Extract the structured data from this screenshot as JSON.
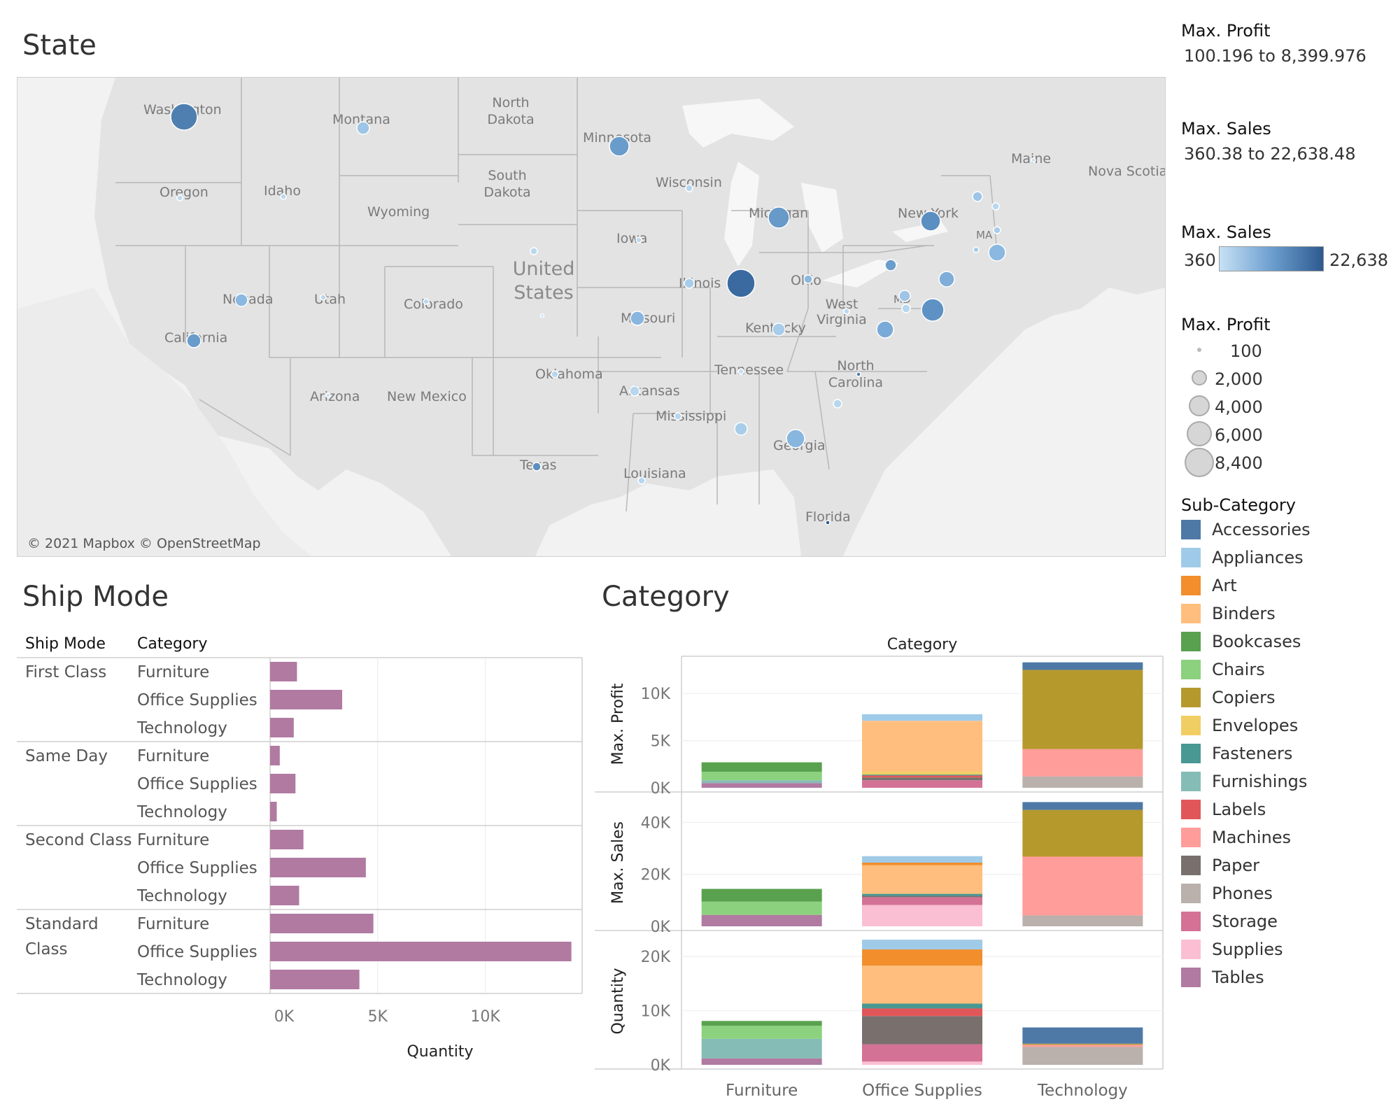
{
  "state_title": "State",
  "ship_mode_title": "Ship Mode",
  "category_title": "Category",
  "map": {
    "attribution": "© 2021 Mapbox © OpenStreetMap",
    "labels": {
      "washington": "Washington",
      "montana": "Montana",
      "north_dakota": "North\nDakota",
      "minnesota": "Minnesota",
      "south_dakota": "South\nDakota",
      "oregon": "Oregon",
      "idaho": "Idaho",
      "wyoming": "Wyoming",
      "wisconsin": "Wisconsin",
      "michigan": "Michigan",
      "new_york": "New York",
      "maine": "Maine",
      "nova_scotia": "Nova Scotia",
      "iowa": "Iowa",
      "united_states": "United\nStates",
      "nevada": "Nevada",
      "utah": "Utah",
      "colorado": "Colorado",
      "illinois": "Illinois",
      "ohio": "Ohio",
      "west_virginia": "West\nVirginia",
      "missouri": "Missouri",
      "kentucky": "Kentucky",
      "california": "California",
      "tennessee": "Tennessee",
      "north_carolina": "North\nCarolina",
      "oklahoma": "Oklahoma",
      "arizona": "Arizona",
      "new_mexico": "New Mexico",
      "arkansas": "Arkansas",
      "mississippi": "Mississippi",
      "georgia": "Georgia",
      "texas": "Texas",
      "louisiana": "Louisiana",
      "florida": "Florida",
      "md": "MD",
      "ma": "MA"
    }
  },
  "legends": {
    "max_profit_range_title": "Max. Profit",
    "max_profit_range": "100.196 to 8,399.976",
    "max_sales_range_title": "Max. Sales",
    "max_sales_range": "360.38 to 22,638.48",
    "max_sales_color_title": "Max. Sales",
    "max_sales_min": "360",
    "max_sales_max": "22,638",
    "max_profit_size_title": "Max. Profit",
    "size_values": [
      "100",
      "2,000",
      "4,000",
      "6,000",
      "8,400"
    ],
    "subcategory_title": "Sub-Category",
    "subcategories": [
      {
        "name": "Accessories",
        "color": "#4e79a7"
      },
      {
        "name": "Appliances",
        "color": "#a0cbe8"
      },
      {
        "name": "Art",
        "color": "#f28e2b"
      },
      {
        "name": "Binders",
        "color": "#ffbe7d"
      },
      {
        "name": "Bookcases",
        "color": "#59a14f"
      },
      {
        "name": "Chairs",
        "color": "#8cd17d"
      },
      {
        "name": "Copiers",
        "color": "#b6992d"
      },
      {
        "name": "Envelopes",
        "color": "#f1ce63"
      },
      {
        "name": "Fasteners",
        "color": "#499894"
      },
      {
        "name": "Furnishings",
        "color": "#86bcb6"
      },
      {
        "name": "Labels",
        "color": "#e15759"
      },
      {
        "name": "Machines",
        "color": "#ff9d9a"
      },
      {
        "name": "Paper",
        "color": "#79706e"
      },
      {
        "name": "Phones",
        "color": "#bab0ac"
      },
      {
        "name": "Storage",
        "color": "#d37295"
      },
      {
        "name": "Supplies",
        "color": "#fabfd2"
      },
      {
        "name": "Tables",
        "color": "#b07aa1"
      }
    ]
  },
  "chart_data": [
    {
      "type": "bar",
      "orientation": "horizontal",
      "col_headers": [
        "Ship Mode",
        "Category"
      ],
      "xlabel": "Quantity",
      "x_ticks": [
        "0K",
        "5K",
        "10K"
      ],
      "xlim": [
        0,
        14500
      ],
      "groups": [
        {
          "ship_mode": "First Class",
          "rows": [
            {
              "category": "Furniture",
              "value": 1250
            },
            {
              "category": "Office Supplies",
              "value": 3350
            },
            {
              "category": "Technology",
              "value": 1100
            }
          ]
        },
        {
          "ship_mode": "Same Day",
          "rows": [
            {
              "category": "Furniture",
              "value": 450
            },
            {
              "category": "Office Supplies",
              "value": 1180
            },
            {
              "category": "Technology",
              "value": 310
            }
          ]
        },
        {
          "ship_mode": "Second Class",
          "rows": [
            {
              "category": "Furniture",
              "value": 1550
            },
            {
              "category": "Office Supplies",
              "value": 4450
            },
            {
              "category": "Technology",
              "value": 1350
            }
          ]
        },
        {
          "ship_mode": "Standard Class",
          "rows": [
            {
              "category": "Furniture",
              "value": 4800
            },
            {
              "category": "Office Supplies",
              "value": 14000
            },
            {
              "category": "Technology",
              "value": 4150
            }
          ]
        }
      ]
    },
    {
      "type": "bar",
      "stacked": true,
      "title": "Category",
      "categories": [
        "Furniture",
        "Office Supplies",
        "Technology"
      ],
      "panels": [
        {
          "ylabel": "Max. Profit",
          "ylim": [
            0,
            13500
          ],
          "ticks": [
            {
              "v": 0,
              "t": "0K"
            },
            {
              "v": 5000,
              "t": "5K"
            },
            {
              "v": 10000,
              "t": "10K"
            }
          ],
          "stacks": [
            [
              {
                "sub": "Tables",
                "v": 500
              },
              {
                "sub": "Furnishings",
                "v": 300
              },
              {
                "sub": "Chairs",
                "v": 900
              },
              {
                "sub": "Bookcases",
                "v": 1000
              }
            ],
            [
              {
                "sub": "Storage",
                "v": 800
              },
              {
                "sub": "Paper",
                "v": 300
              },
              {
                "sub": "Labels",
                "v": 200
              },
              {
                "sub": "Fasteners",
                "v": 100
              },
              {
                "sub": "Envelopes",
                "v": 300
              },
              {
                "sub": "Binders",
                "v": 5400
              },
              {
                "sub": "Appliances",
                "v": 700
              }
            ],
            [
              {
                "sub": "Phones",
                "v": 1200
              },
              {
                "sub": "Machines",
                "v": 2900
              },
              {
                "sub": "Copiers",
                "v": 8400
              },
              {
                "sub": "Accessories",
                "v": 800
              }
            ]
          ]
        },
        {
          "ylabel": "Max. Sales",
          "ylim": [
            0,
            49000
          ],
          "ticks": [
            {
              "v": 0,
              "t": "0K"
            },
            {
              "v": 20000,
              "t": "20K"
            },
            {
              "v": 40000,
              "t": "40K"
            }
          ],
          "stacks": [
            [
              {
                "sub": "Tables",
                "v": 4400
              },
              {
                "sub": "Chairs",
                "v": 5100
              },
              {
                "sub": "Bookcases",
                "v": 4900
              }
            ],
            [
              {
                "sub": "Supplies",
                "v": 8200
              },
              {
                "sub": "Storage",
                "v": 3000
              },
              {
                "sub": "Paper",
                "v": 500
              },
              {
                "sub": "Fasteners",
                "v": 800
              },
              {
                "sub": "Binders",
                "v": 11000
              },
              {
                "sub": "Art",
                "v": 1000
              },
              {
                "sub": "Appliances",
                "v": 2500
              }
            ],
            [
              {
                "sub": "Phones",
                "v": 4200
              },
              {
                "sub": "Machines",
                "v": 22600
              },
              {
                "sub": "Copiers",
                "v": 18000
              },
              {
                "sub": "Accessories",
                "v": 3000
              }
            ]
          ]
        },
        {
          "ylabel": "Quantity",
          "ylim": [
            0,
            23500
          ],
          "ticks": [
            {
              "v": 0,
              "t": "0K"
            },
            {
              "v": 10000,
              "t": "10K"
            },
            {
              "v": 20000,
              "t": "20K"
            }
          ],
          "stacks": [
            [
              {
                "sub": "Tables",
                "v": 1200
              },
              {
                "sub": "Furnishings",
                "v": 3600
              },
              {
                "sub": "Chairs",
                "v": 2400
              },
              {
                "sub": "Bookcases",
                "v": 900
              }
            ],
            [
              {
                "sub": "Supplies",
                "v": 600
              },
              {
                "sub": "Storage",
                "v": 3200
              },
              {
                "sub": "Paper",
                "v": 5200
              },
              {
                "sub": "Labels",
                "v": 1400
              },
              {
                "sub": "Fasteners",
                "v": 900
              },
              {
                "sub": "Binders",
                "v": 7000
              },
              {
                "sub": "Art",
                "v": 3000
              },
              {
                "sub": "Appliances",
                "v": 1800
              }
            ],
            [
              {
                "sub": "Phones",
                "v": 3300
              },
              {
                "sub": "Machines",
                "v": 400
              },
              {
                "sub": "Copiers",
                "v": 200
              },
              {
                "sub": "Accessories",
                "v": 3000
              }
            ]
          ]
        }
      ]
    }
  ]
}
